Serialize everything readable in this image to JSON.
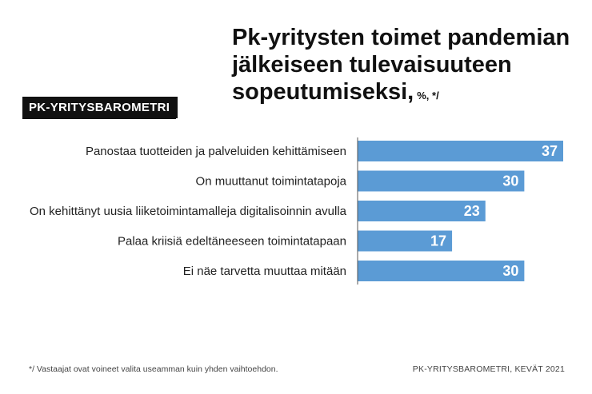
{
  "title": "Pk-yritysten toimet pandemian jälkeiseen tulevaisuuteen sopeutumiseksi,",
  "title_unit": "%, */",
  "brand": "PK-YRITYSBAROMETRI",
  "footnote": "*/ Vastaajat ovat voineet valita useamman kuin yhden vaihtoehdon.",
  "source": "PK-YRITYSBAROMETRI, KEVÄT 2021",
  "colors": {
    "bar": "#5b9bd5",
    "text": "#222222",
    "brand_bg": "#111111"
  },
  "chart_data": {
    "type": "bar",
    "orientation": "horizontal",
    "categories": [
      "Panostaa tuotteiden ja palveluiden kehittämiseen",
      "On muuttanut toimintatapoja",
      "On kehittänyt uusia liiketoimintamalleja digitalisoinnin avulla",
      "Palaa kriisiä edeltäneeseen toimintatapaan",
      "Ei näe tarvetta muuttaa mitään"
    ],
    "values": [
      37,
      30,
      23,
      17,
      30
    ],
    "xlim": [
      0,
      37
    ],
    "grid": false,
    "legend": "none"
  }
}
